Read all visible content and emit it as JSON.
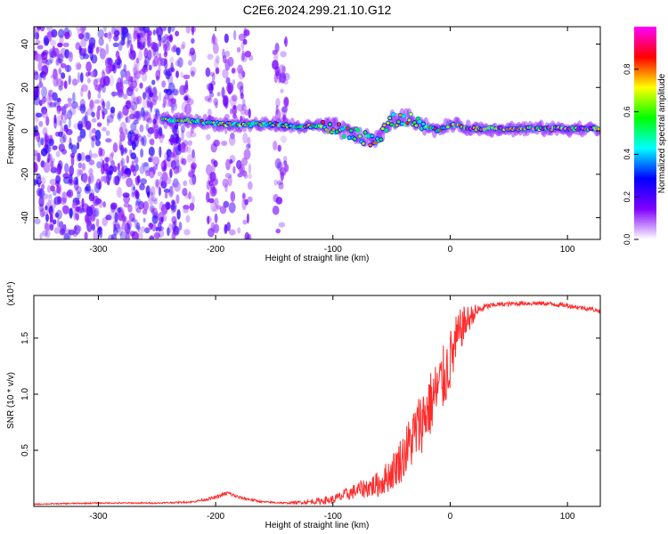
{
  "figure_title": "C2E6.2024.299.21.10.G12",
  "chart_data": [
    {
      "type": "heatmap",
      "panel": "top",
      "xlabel": "Height of straight line (km)",
      "ylabel": "Frequency (Hz)",
      "xlim": [
        -355,
        128
      ],
      "ylim": [
        -50,
        48
      ],
      "xticks": [
        -300,
        -200,
        -100,
        0,
        100
      ],
      "xtick_labels": [
        "-300",
        "-200",
        "-100",
        "0",
        "100"
      ],
      "yticks": [
        -40,
        -20,
        0,
        20,
        40
      ],
      "ytick_labels": [
        "-40",
        "-20",
        "0",
        "20",
        "40"
      ],
      "colorbar": {
        "label": "Normalized spectral amplitude",
        "range": [
          0,
          1
        ],
        "ticks": [
          0.0,
          0.2,
          0.4,
          0.6,
          0.8
        ],
        "tick_labels": [
          "0.0",
          "0.2",
          "0.4",
          "0.6",
          "0.8"
        ],
        "colormap": [
          "#ffffff",
          "#8000ff",
          "#0000ff",
          "#00ffff",
          "#00ff00",
          "#ffff00",
          "#ff0000",
          "#ff00ff"
        ]
      },
      "noise_regions": [
        {
          "x": [
            -355,
            -230
          ],
          "y": [
            -50,
            48
          ],
          "density": "high"
        },
        {
          "x": [
            -228,
            -140
          ],
          "y": [
            -50,
            48
          ],
          "density": "low"
        }
      ],
      "signal_track": {
        "x": [
          -245,
          -230,
          -210,
          -190,
          -170,
          -150,
          -130,
          -110,
          -100,
          -90,
          -80,
          -70,
          -60,
          -50,
          -40,
          -30,
          -20,
          -10,
          0,
          20,
          40,
          60,
          80,
          100,
          128
        ],
        "y": [
          5,
          5,
          4,
          3,
          3,
          3,
          2,
          2,
          2,
          0,
          -2,
          -4,
          -3,
          5,
          6,
          5,
          2,
          0,
          3,
          1,
          1,
          1,
          1,
          1,
          1
        ],
        "peak_amplitude": 0.95
      }
    },
    {
      "type": "line",
      "panel": "bottom",
      "xlabel": "Height of straight line (km)",
      "ylabel": "SNR (10 * v/v)",
      "scale_note": "(x10⁴)",
      "xlim": [
        -355,
        128
      ],
      "ylim": [
        0,
        1.88
      ],
      "xticks": [
        -300,
        -200,
        -100,
        0,
        100
      ],
      "xtick_labels": [
        "-300",
        "-200",
        "-100",
        "0",
        "100"
      ],
      "yticks": [
        0.5,
        1.0,
        1.5
      ],
      "ytick_labels": [
        "0.5",
        "1.0",
        "1.5"
      ],
      "series": [
        {
          "color": "#ff2b2b",
          "x": [
            -355,
            -300,
            -250,
            -220,
            -200,
            -190,
            -180,
            -160,
            -140,
            -120,
            -100,
            -80,
            -60,
            -50,
            -40,
            -30,
            -20,
            -10,
            -5,
            0,
            5,
            10,
            20,
            30,
            40,
            60,
            80,
            100,
            120,
            128
          ],
          "y": [
            0.02,
            0.03,
            0.03,
            0.04,
            0.08,
            0.12,
            0.08,
            0.04,
            0.03,
            0.04,
            0.06,
            0.14,
            0.2,
            0.3,
            0.45,
            0.65,
            0.85,
            1.05,
            1.15,
            1.3,
            1.45,
            1.6,
            1.72,
            1.78,
            1.8,
            1.81,
            1.81,
            1.79,
            1.76,
            1.74
          ],
          "noise_amplitude": [
            0.005,
            0.006,
            0.006,
            0.008,
            0.015,
            0.02,
            0.015,
            0.008,
            0.008,
            0.02,
            0.04,
            0.07,
            0.12,
            0.16,
            0.22,
            0.28,
            0.3,
            0.3,
            0.3,
            0.28,
            0.25,
            0.18,
            0.08,
            0.03,
            0.02,
            0.02,
            0.02,
            0.02,
            0.02,
            0.02
          ]
        }
      ]
    }
  ]
}
